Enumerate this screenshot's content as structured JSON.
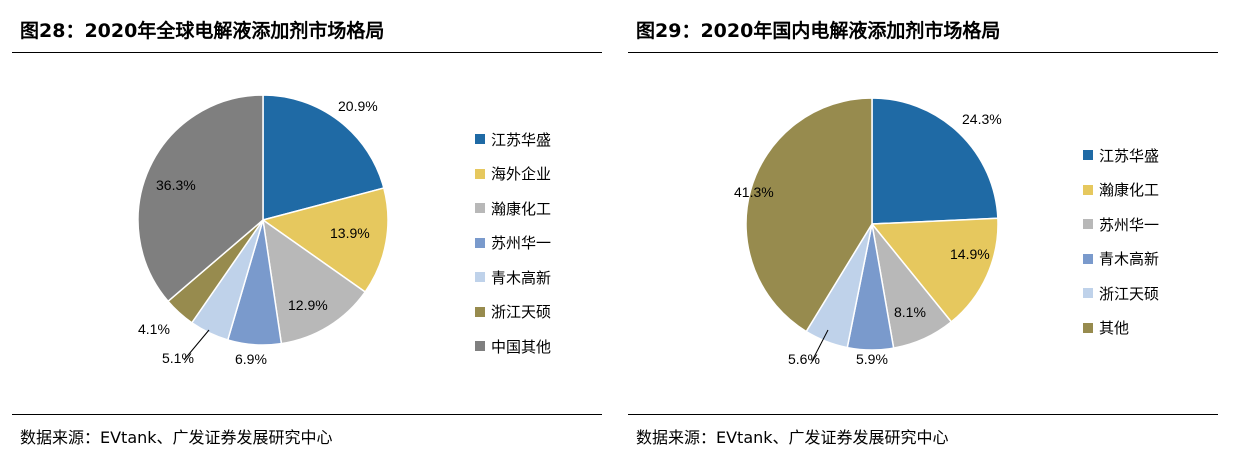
{
  "charts": [
    {
      "title": "图28：2020年全球电解液添加剂市场格局",
      "source": "数据来源：EVtank、广发证券发展研究中心",
      "chart_data": {
        "type": "pie",
        "slices": [
          {
            "name": "江苏华盛",
            "value": 20.9,
            "label": "20.9%",
            "color": "#1F6AA5"
          },
          {
            "name": "海外企业",
            "value": 13.9,
            "label": "13.9%",
            "color": "#E6C85E"
          },
          {
            "name": "瀚康化工",
            "value": 12.9,
            "label": "12.9%",
            "color": "#B8B8B8"
          },
          {
            "name": "苏州华一",
            "value": 6.9,
            "label": "6.9%",
            "color": "#7A9ACC"
          },
          {
            "name": "青木高新",
            "value": 5.1,
            "label": "5.1%",
            "color": "#BFD2EA"
          },
          {
            "name": "浙江天硕",
            "value": 4.1,
            "label": "4.1%",
            "color": "#978B4E"
          },
          {
            "name": "中国其他",
            "value": 36.3,
            "label": "36.3%",
            "color": "#7F7F7F"
          }
        ],
        "legend_position": "right"
      }
    },
    {
      "title": "图29：2020年国内电解液添加剂市场格局",
      "source": "数据来源：EVtank、广发证券发展研究中心",
      "chart_data": {
        "type": "pie",
        "slices": [
          {
            "name": "江苏华盛",
            "value": 24.3,
            "label": "24.3%",
            "color": "#1F6AA5"
          },
          {
            "name": "瀚康化工",
            "value": 14.9,
            "label": "14.9%",
            "color": "#E6C85E"
          },
          {
            "name": "苏州华一",
            "value": 8.1,
            "label": "8.1%",
            "color": "#B8B8B8"
          },
          {
            "name": "青木高新",
            "value": 5.9,
            "label": "5.9%",
            "color": "#7A9ACC"
          },
          {
            "name": "浙江天硕",
            "value": 5.6,
            "label": "5.6%",
            "color": "#BFD2EA"
          },
          {
            "name": "其他",
            "value": 41.3,
            "label": "41.3%",
            "color": "#978B4E"
          }
        ],
        "legend_position": "right"
      }
    }
  ]
}
